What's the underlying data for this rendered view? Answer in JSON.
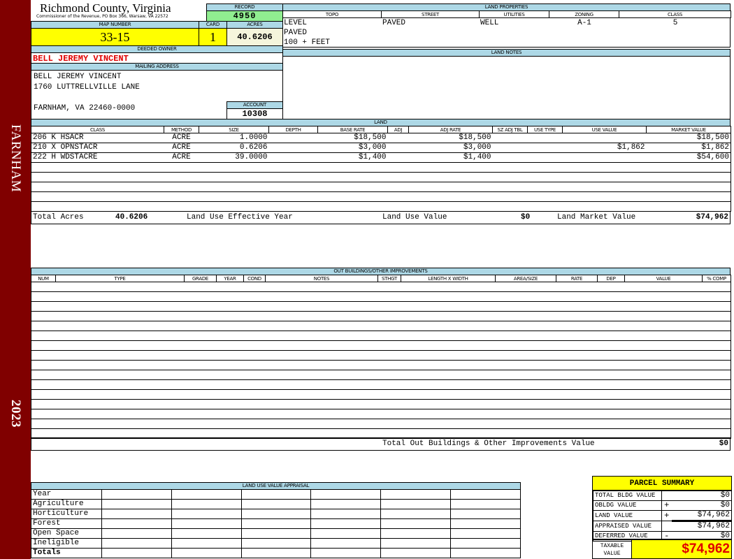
{
  "sidebar": {
    "district": "FARNHAM",
    "year": "2023"
  },
  "header": {
    "county": "Richmond County, Virginia",
    "office": "Commissioner of the Revenue, PO Box 366, Warsaw, VA 22572",
    "record_label": "RECORD",
    "record": "4950",
    "map_label": "MAP NUMBER",
    "map_number": "33-15",
    "card_label": "CARD",
    "card": "1",
    "acres_label": "ACRES",
    "acres": "40.6206"
  },
  "owner": {
    "deeded_label": "DEEDED OWNER",
    "deeded_owner": "BELL JEREMY VINCENT",
    "mailing_label": "MAILING ADDRESS",
    "address": [
      "BELL JEREMY VINCENT",
      "1760 LUTTRELLVILLE LANE",
      "",
      "FARNHAM, VA 22460-0000"
    ],
    "account_label": "ACCOUNT",
    "account": "10308"
  },
  "land_properties": {
    "title": "LAND PROPERTIES",
    "columns": [
      "TOPO",
      "STREET",
      "UTILITIES",
      "ZONING",
      "CLASS"
    ],
    "topo": [
      "LEVEL",
      "PAVED",
      "100 + FEET"
    ],
    "street": "PAVED",
    "utilities": "WELL",
    "zoning": "A-1",
    "class": "5"
  },
  "land_notes": {
    "title": "LAND NOTES"
  },
  "land": {
    "title": "LAND",
    "columns": [
      "CLASS",
      "METHOD",
      "SIZE",
      "DEPTH",
      "BASE RATE",
      "ADJ",
      "ADJ RATE",
      "SZ ADJ TBL",
      "USE TYPE",
      "USE VALUE",
      "MARKET VALUE"
    ],
    "rows": [
      [
        "206 K HSACR",
        "ACRE",
        "1.0000",
        "",
        "$18,500",
        "",
        "$18,500",
        "",
        "",
        "",
        "$18,500"
      ],
      [
        "210 X OPNSTACR",
        "ACRE",
        "0.6206",
        "",
        "$3,000",
        "",
        "$3,000",
        "",
        "",
        "$1,862",
        "$1,862"
      ],
      [
        "222 H WDSTACRE",
        "ACRE",
        "39.0000",
        "",
        "$1,400",
        "",
        "$1,400",
        "",
        "",
        "",
        "$54,600"
      ]
    ],
    "total_acres_label": "Total Acres",
    "total_acres": "40.6206",
    "effective_year_label": "Land Use Effective Year",
    "use_value_label": "Land Use Value",
    "use_value": "$0",
    "market_value_label": "Land Market Value",
    "market_value": "$74,962"
  },
  "outbuildings": {
    "title": "OUT BUILDINGS/OTHER IMPROVEMENTS",
    "columns": [
      "NUM",
      "TYPE",
      "GRADE",
      "YEAR",
      "COND",
      "NOTES",
      "STHGT",
      "LENGTH X WIDTH",
      "AREA/SIZE",
      "RATE",
      "DEP",
      "VALUE",
      "% COMP"
    ],
    "total_label": "Total Out Buildings & Other Improvements Value",
    "total": "$0"
  },
  "land_use": {
    "title": "LAND USE VALUE APPRAISAL",
    "year_label": "Year",
    "rows": [
      "Agriculture",
      "Horticulture",
      "Forest",
      "Open Space",
      "Ineligible"
    ],
    "totals_label": "Totals"
  },
  "summary": {
    "title": "PARCEL SUMMARY",
    "rows": [
      {
        "label": "TOTAL BLDG VALUE",
        "op": "",
        "value": "$0"
      },
      {
        "label": "OBLDG VALUE",
        "op": "+",
        "value": "$0"
      },
      {
        "label": "LAND VALUE",
        "op": "+",
        "value": "$74,962"
      },
      {
        "label": "APPRAISED VALUE",
        "op": "",
        "value": "$74,962"
      },
      {
        "label": "DEFERRED VALUE",
        "op": "-",
        "value": "$0"
      }
    ],
    "taxable_label": "TAXABLE VALUE",
    "taxable": "$74,962"
  },
  "colors": {
    "sidebar": "#800000",
    "header": "#add8e6",
    "highlight": "#ffff00",
    "record": "#90ee90",
    "owner": "#e00000"
  }
}
